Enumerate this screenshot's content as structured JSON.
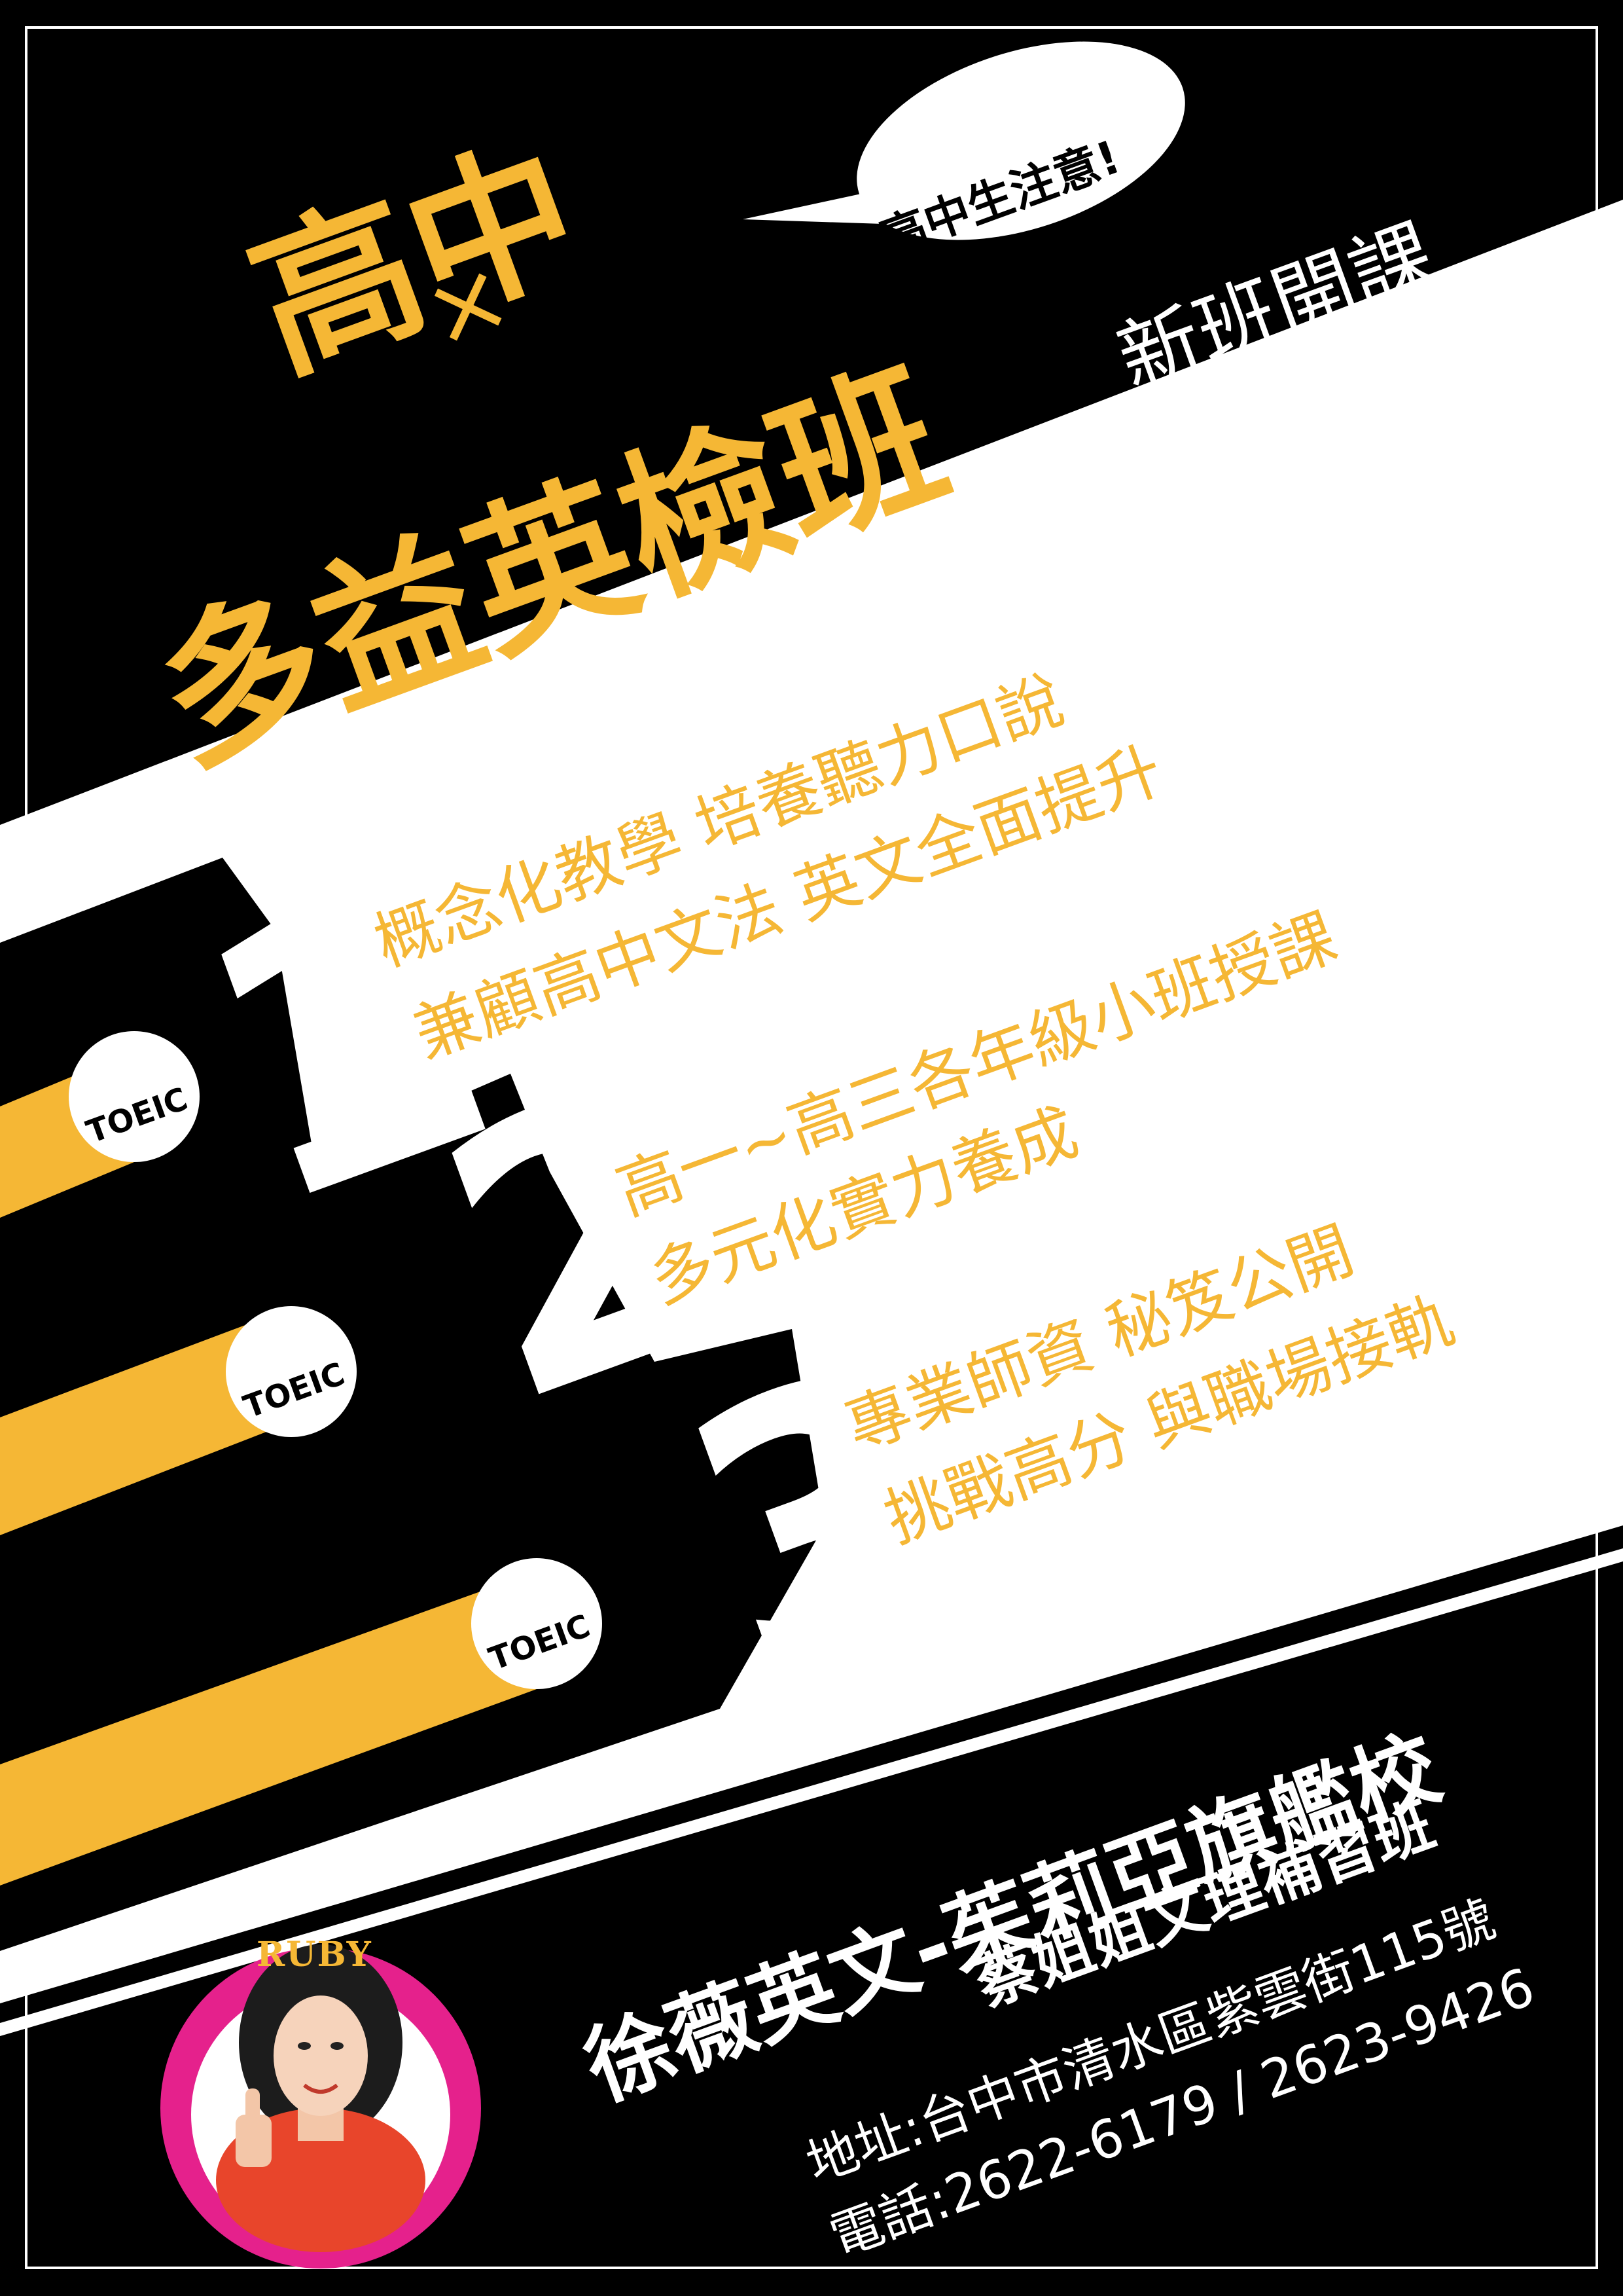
{
  "colors": {
    "background": "#000000",
    "accent": "#f5b735",
    "band": "#ffffff",
    "badge_ring": "#e5218c"
  },
  "header": {
    "title_line1": "高中",
    "cross": "×",
    "title_line2": "多益英檢班",
    "bubble": "高中生注意!",
    "new_class": "新班開課"
  },
  "features": [
    {
      "number": "1",
      "badge": "TOEIC",
      "line1": "概念化教學 培養聽力口說",
      "line2": "兼顧高中文法 英文全面提升"
    },
    {
      "number": "2",
      "badge": "TOEIC",
      "line1": "高一~高三各年級小班授課",
      "line2": "多元化實力養成"
    },
    {
      "number": "3",
      "badge": "TOEIC",
      "line1": "專業師資 秘笈公開",
      "line2": "挑戰高分 與職場接軌"
    }
  ],
  "school": {
    "name": "徐薇英文-茱莉亞旗艦校",
    "sub": "蔡姐姐文理補習班",
    "address": "地址:台中市清水區紫雲街115號",
    "phone": "電話:2622-6179 / 2623-9426"
  },
  "portrait": {
    "logo": "RUBY",
    "icon": "teacher-portrait-icon"
  }
}
